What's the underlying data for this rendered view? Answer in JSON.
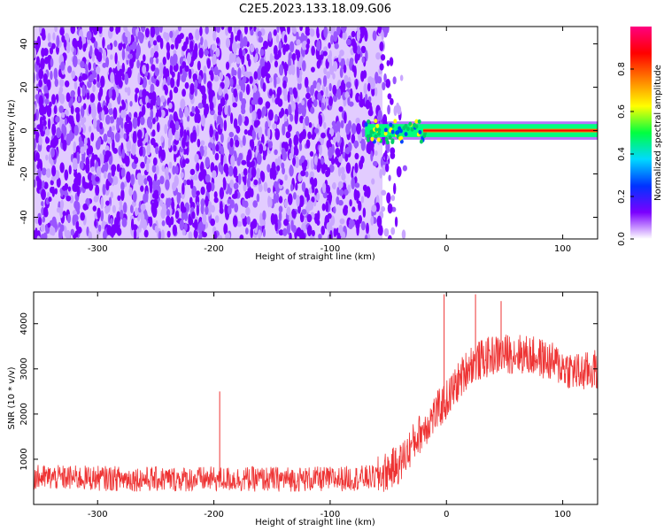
{
  "figure_title": "C2E5.2023.133.18.09.G06",
  "chart_data": [
    {
      "type": "heatmap",
      "xlabel": "Height of straight line (km)",
      "ylabel": "Frequency (Hz)",
      "xlim": [
        -355,
        130
      ],
      "ylim": [
        -50,
        48
      ],
      "x_ticks": [
        -300,
        -200,
        -100,
        0,
        100
      ],
      "y_ticks": [
        -40,
        -20,
        0,
        20,
        40
      ],
      "colorbar": {
        "label": "Normalized spectral amplitude",
        "range": [
          0,
          1
        ],
        "ticks": [
          "0.0",
          "0.2",
          "0.4",
          "0.6",
          "0.8"
        ],
        "colormap": [
          "#ffffff",
          "#7b00ff",
          "#0033ff",
          "#00d9ff",
          "#00ff40",
          "#ffff00",
          "#ff8000",
          "#ff0000",
          "#ff0080"
        ]
      },
      "regions": [
        {
          "x_range": [
            -355,
            -55
          ],
          "y_range": [
            -50,
            48
          ],
          "description_level": 0.15,
          "color": "#7a00ff"
        },
        {
          "x_range": [
            -70,
            130
          ],
          "y_range": [
            -3,
            3
          ],
          "description_level": 0.5,
          "color": "#00ff80"
        },
        {
          "x_range": [
            -20,
            130
          ],
          "y_range": [
            -1,
            1
          ],
          "description_level": 0.85,
          "color": "#ff0000"
        }
      ]
    },
    {
      "type": "line",
      "xlabel": "Height of straight line (km)",
      "ylabel": "SNR (10 * v/v)",
      "xlim": [
        -355,
        130
      ],
      "ylim": [
        0,
        4700
      ],
      "x_ticks": [
        -300,
        -200,
        -100,
        0,
        100
      ],
      "y_ticks": [
        1000,
        2000,
        3000,
        4000
      ],
      "series_color": "#ee3333",
      "envelope": [
        {
          "x": -355,
          "y": 600
        },
        {
          "x": -300,
          "y": 580
        },
        {
          "x": -250,
          "y": 560
        },
        {
          "x": -200,
          "y": 560
        },
        {
          "x": -150,
          "y": 560
        },
        {
          "x": -100,
          "y": 560
        },
        {
          "x": -60,
          "y": 600
        },
        {
          "x": -40,
          "y": 900
        },
        {
          "x": -25,
          "y": 1500
        },
        {
          "x": -10,
          "y": 2000
        },
        {
          "x": 0,
          "y": 2300
        },
        {
          "x": 10,
          "y": 2700
        },
        {
          "x": 20,
          "y": 3100
        },
        {
          "x": 40,
          "y": 3300
        },
        {
          "x": 60,
          "y": 3350
        },
        {
          "x": 80,
          "y": 3250
        },
        {
          "x": 100,
          "y": 3050
        },
        {
          "x": 115,
          "y": 2900
        },
        {
          "x": 130,
          "y": 3000
        }
      ],
      "spikes": [
        {
          "x": -195,
          "y": 2500
        },
        {
          "x": -2,
          "y": 4650
        },
        {
          "x": 25,
          "y": 4650
        },
        {
          "x": 47,
          "y": 4500
        }
      ]
    }
  ]
}
